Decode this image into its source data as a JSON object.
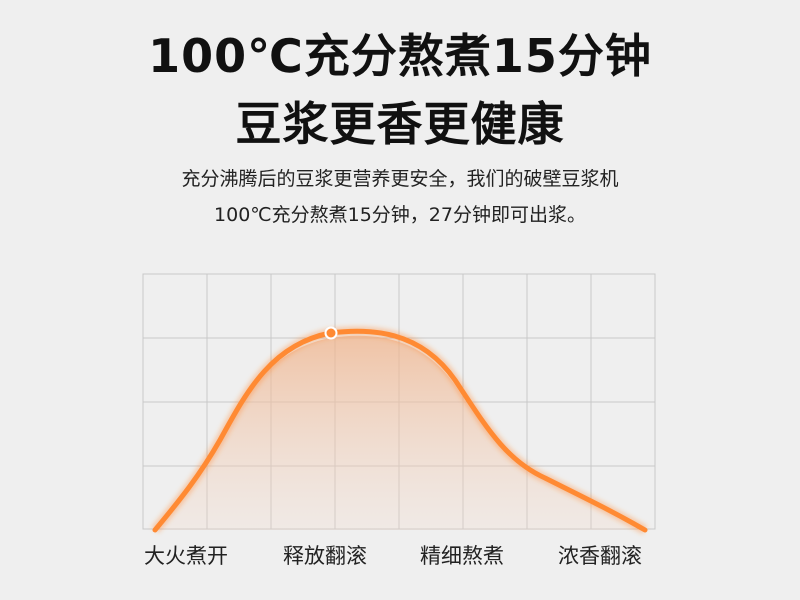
{
  "headline": {
    "line1": "100℃充分熬煮15分钟",
    "line2": "豆浆更香更健康"
  },
  "description": {
    "line1": "充分沸腾后的豆浆更营养更安全，我们的破壁豆浆机",
    "line2": "100℃充分熬煮15分钟，27分钟即可出浆。"
  },
  "stages": [
    "大火煮开",
    "释放翻滚",
    "精细熬煮",
    "浓香翻滚"
  ],
  "colors": {
    "curve": "#ff8a33",
    "grid": "#c8c8c8",
    "background": "#efefef"
  }
}
